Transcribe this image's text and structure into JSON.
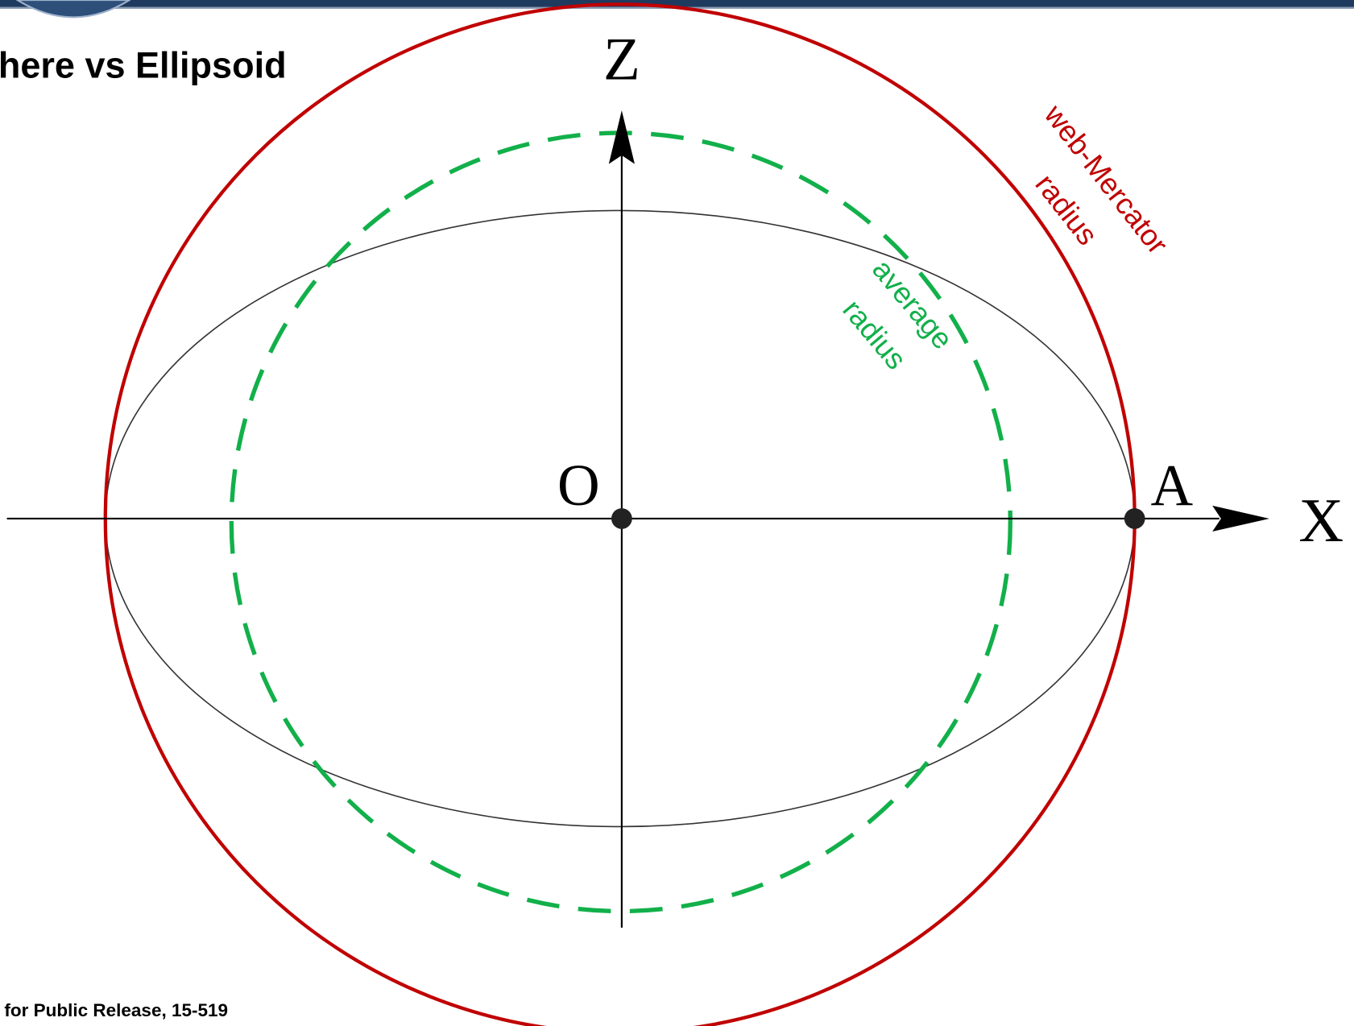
{
  "title": "here vs Ellipsoid",
  "labels": {
    "z": "Z",
    "x": "X",
    "origin": "O",
    "point_a": "A"
  },
  "annotations": {
    "web_mercator": [
      "web-Mercator",
      "radius"
    ],
    "average": [
      "average",
      "radius"
    ]
  },
  "footer": "for Public Release, 15-519"
}
